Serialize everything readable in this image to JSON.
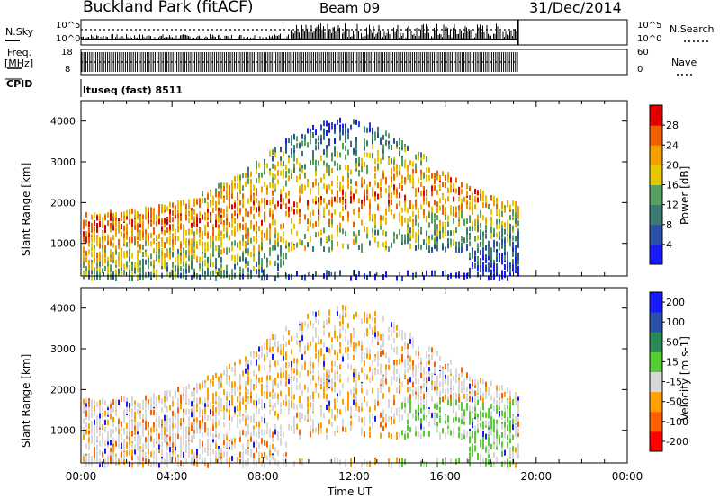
{
  "header": {
    "station": "Buckland Park (fitACF)",
    "beam": "Beam 09",
    "date": "31/Dec/2014"
  },
  "top_panels": {
    "nsky_label": "N.Sky",
    "nsky_ticks": [
      "10^5",
      "10^0"
    ],
    "nsearch_label": "N.Search",
    "freq_label_1": "Freq.",
    "freq_label_2": "[MHz]",
    "freq_ticks": [
      "18",
      "8"
    ],
    "nave_label": "Nave",
    "nave_ticks": [
      "60",
      "0"
    ],
    "cpid_label": "CPID",
    "cpid_text": "ltuseq (fast) 8511"
  },
  "colors": {
    "power": [
      "#1a1aff",
      "#2a4fa8",
      "#3a7a70",
      "#55a060",
      "#e6c800",
      "#f0a000",
      "#f06000",
      "#e00000"
    ],
    "velocity": [
      "#ff0000",
      "#ff6000",
      "#ffa000",
      "#d8d8d8",
      "#55cc33",
      "#2a8a55",
      "#2a4fa8",
      "#1a1aff"
    ]
  },
  "chart_data": [
    {
      "type": "heatmap",
      "name_of_quantity": "Power",
      "ylabel": "Slant Range [km]",
      "yticks": [
        1000,
        2000,
        3000,
        4000
      ],
      "colorbar_label": "Power [dB]",
      "colorbar_ticks": [
        "4",
        "8",
        "12",
        "16",
        "20",
        "24",
        "28"
      ],
      "colorbar_range": [
        0,
        32
      ],
      "x_range_hours": [
        0,
        24
      ],
      "data_end_hours": 19.2,
      "ylim": [
        200,
        4500
      ]
    },
    {
      "type": "heatmap",
      "name_of_quantity": "Velocity",
      "ylabel": "Slant Range [km]",
      "yticks": [
        1000,
        2000,
        3000,
        4000
      ],
      "colorbar_label": "Velocity [m s-1]",
      "colorbar_ticks": [
        "-200",
        "-100",
        "-50",
        "-15",
        "15",
        "50",
        "100",
        "200"
      ],
      "xlabel": "Time UT",
      "xticks": [
        "00:00",
        "04:00",
        "08:00",
        "12:00",
        "16:00",
        "20:00",
        "00:00"
      ],
      "x_range_hours": [
        0,
        24
      ],
      "data_end_hours": 19.2,
      "ylim": [
        200,
        4500
      ]
    }
  ]
}
